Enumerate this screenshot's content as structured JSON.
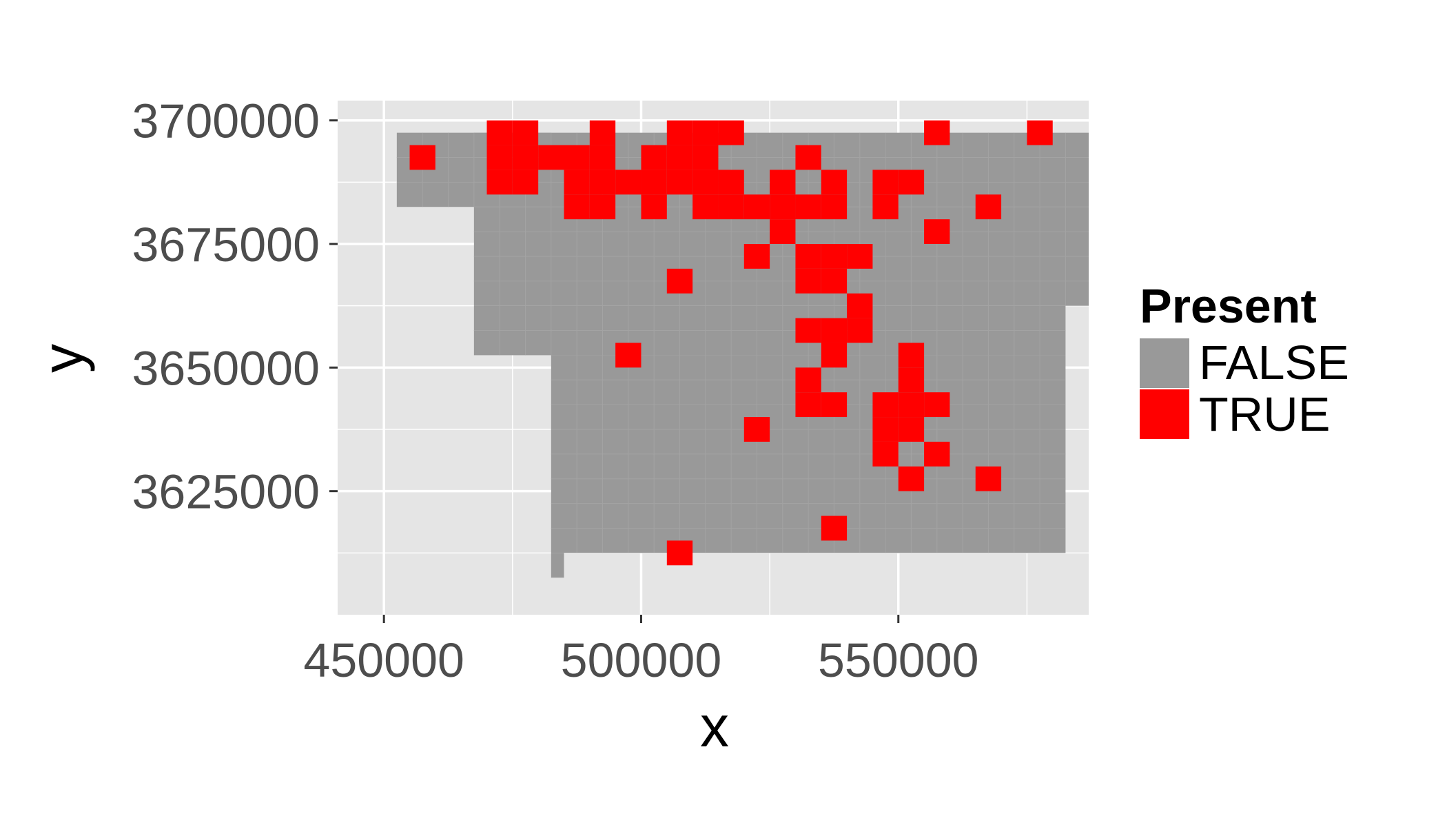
{
  "chart_data": {
    "type": "map",
    "title": "",
    "xlabel": "x",
    "ylabel": "y",
    "xlim": [
      441000,
      587000
    ],
    "ylim": [
      3600000,
      3704000
    ],
    "x_ticks": [
      450000,
      500000,
      550000
    ],
    "x_tick_labels": [
      "450000",
      "500000",
      "550000"
    ],
    "y_ticks": [
      3625000,
      3650000,
      3675000,
      3700000
    ],
    "y_tick_labels": [
      "3625000",
      "3650000",
      "3675000",
      "3700000"
    ],
    "grid": true,
    "cell_size": 5000,
    "legend": {
      "title": "Present",
      "position": "right",
      "entries": [
        {
          "label": "FALSE",
          "color": "#999999"
        },
        {
          "label": "TRUE",
          "color": "#ff0000"
        }
      ]
    },
    "colors": {
      "panel": "#e5e5e5",
      "grid": "#ffffff",
      "false": "#999999",
      "true": "#ff0000"
    },
    "false_cells": [
      {
        "x0": 452500,
        "x1": 482500,
        "y0": 3682500,
        "y1": 3697500
      },
      {
        "x0": 467500,
        "x1": 587000,
        "y0": 3662500,
        "y1": 3697500
      },
      {
        "x0": 467500,
        "x1": 582500,
        "y0": 3652500,
        "y1": 3662500
      },
      {
        "x0": 482500,
        "x1": 582500,
        "y0": 3612500,
        "y1": 3652500
      },
      {
        "x0": 482500,
        "x1": 485000,
        "y0": 3607500,
        "y1": 3612500
      }
    ],
    "true_cells": [
      {
        "x": 457500,
        "y": 3692500
      },
      {
        "x": 472500,
        "y": 3697500
      },
      {
        "x": 477500,
        "y": 3697500
      },
      {
        "x": 472500,
        "y": 3692500
      },
      {
        "x": 477500,
        "y": 3692500
      },
      {
        "x": 472500,
        "y": 3687500
      },
      {
        "x": 477500,
        "y": 3687500
      },
      {
        "x": 482500,
        "y": 3692500
      },
      {
        "x": 487500,
        "y": 3692500
      },
      {
        "x": 492500,
        "y": 3697500
      },
      {
        "x": 492500,
        "y": 3692500
      },
      {
        "x": 487500,
        "y": 3687500
      },
      {
        "x": 492500,
        "y": 3687500
      },
      {
        "x": 497500,
        "y": 3687500
      },
      {
        "x": 487500,
        "y": 3682500
      },
      {
        "x": 492500,
        "y": 3682500
      },
      {
        "x": 502500,
        "y": 3692500
      },
      {
        "x": 502500,
        "y": 3687500
      },
      {
        "x": 502500,
        "y": 3682500
      },
      {
        "x": 507500,
        "y": 3697500
      },
      {
        "x": 512500,
        "y": 3697500
      },
      {
        "x": 517500,
        "y": 3697500
      },
      {
        "x": 507500,
        "y": 3692500
      },
      {
        "x": 512500,
        "y": 3692500
      },
      {
        "x": 507500,
        "y": 3687500
      },
      {
        "x": 512500,
        "y": 3687500
      },
      {
        "x": 517500,
        "y": 3687500
      },
      {
        "x": 512500,
        "y": 3682500
      },
      {
        "x": 517500,
        "y": 3682500
      },
      {
        "x": 522500,
        "y": 3682500
      },
      {
        "x": 527500,
        "y": 3687500
      },
      {
        "x": 527500,
        "y": 3682500
      },
      {
        "x": 527500,
        "y": 3677500
      },
      {
        "x": 532500,
        "y": 3692500
      },
      {
        "x": 532500,
        "y": 3682500
      },
      {
        "x": 537500,
        "y": 3687500
      },
      {
        "x": 537500,
        "y": 3682500
      },
      {
        "x": 547500,
        "y": 3687500
      },
      {
        "x": 547500,
        "y": 3682500
      },
      {
        "x": 552500,
        "y": 3687500
      },
      {
        "x": 557500,
        "y": 3697500
      },
      {
        "x": 577500,
        "y": 3697500
      },
      {
        "x": 567500,
        "y": 3682500
      },
      {
        "x": 557500,
        "y": 3677500
      },
      {
        "x": 522500,
        "y": 3672500
      },
      {
        "x": 532500,
        "y": 3672500
      },
      {
        "x": 537500,
        "y": 3672500
      },
      {
        "x": 542500,
        "y": 3672500
      },
      {
        "x": 507500,
        "y": 3667500
      },
      {
        "x": 532500,
        "y": 3667500
      },
      {
        "x": 537500,
        "y": 3667500
      },
      {
        "x": 542500,
        "y": 3662500
      },
      {
        "x": 532500,
        "y": 3657500
      },
      {
        "x": 537500,
        "y": 3657500
      },
      {
        "x": 542500,
        "y": 3657500
      },
      {
        "x": 497500,
        "y": 3652500
      },
      {
        "x": 537500,
        "y": 3652500
      },
      {
        "x": 552500,
        "y": 3652500
      },
      {
        "x": 552500,
        "y": 3647500
      },
      {
        "x": 532500,
        "y": 3647500
      },
      {
        "x": 532500,
        "y": 3642500
      },
      {
        "x": 537500,
        "y": 3642500
      },
      {
        "x": 547500,
        "y": 3642500
      },
      {
        "x": 552500,
        "y": 3642500
      },
      {
        "x": 557500,
        "y": 3642500
      },
      {
        "x": 522500,
        "y": 3637500
      },
      {
        "x": 547500,
        "y": 3637500
      },
      {
        "x": 552500,
        "y": 3637500
      },
      {
        "x": 547500,
        "y": 3632500
      },
      {
        "x": 557500,
        "y": 3632500
      },
      {
        "x": 552500,
        "y": 3627500
      },
      {
        "x": 567500,
        "y": 3627500
      },
      {
        "x": 537500,
        "y": 3617500
      },
      {
        "x": 507500,
        "y": 3612500
      }
    ]
  }
}
